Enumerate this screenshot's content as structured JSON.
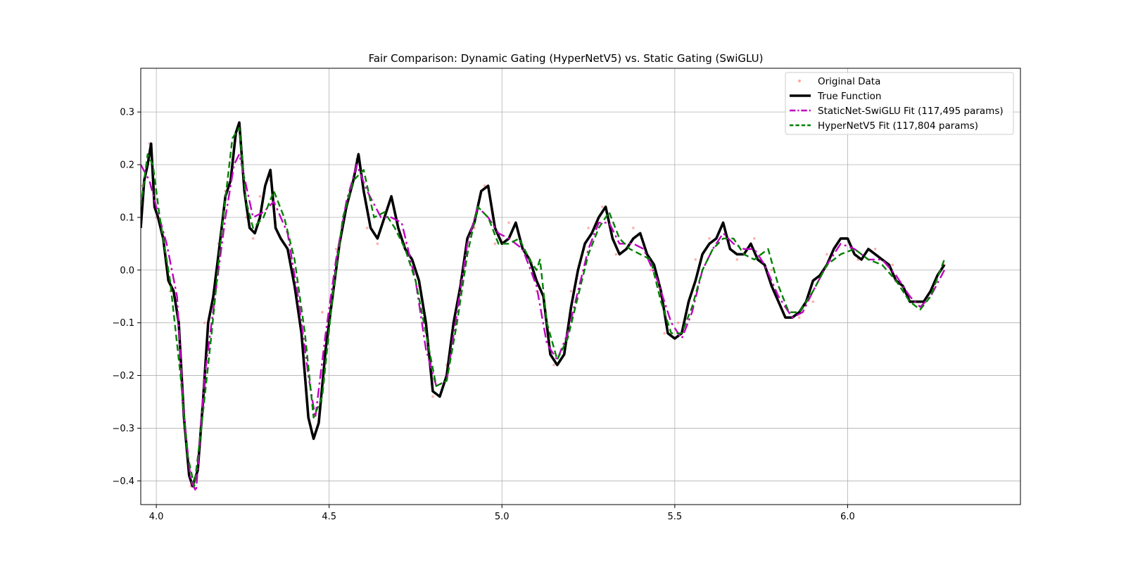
{
  "chart_data": {
    "type": "line",
    "title": "Fair Comparison: Dynamic Gating (HyperNetV5) vs. Static Gating (SwiGLU)",
    "xlabel": "",
    "ylabel": "",
    "xlim": [
      3.955,
      6.5
    ],
    "ylim": [
      -0.445,
      0.383
    ],
    "grid": true,
    "legend_position": "top-right",
    "x_ticks": [
      4.0,
      4.5,
      5.0,
      5.5,
      6.0
    ],
    "x_tick_labels": [
      "4.0",
      "4.5",
      "5.0",
      "5.5",
      "6.0"
    ],
    "y_ticks": [
      -0.4,
      -0.3,
      -0.2,
      -0.1,
      0.0,
      0.1,
      0.2,
      0.3
    ],
    "y_tick_labels": [
      "−0.4",
      "−0.3",
      "−0.2",
      "−0.1",
      "0.0",
      "0.1",
      "0.2",
      "0.3"
    ],
    "series": [
      {
        "name": "Original Data",
        "kind": "scatter",
        "color": "#ff6b6b",
        "x": [
          3.96,
          3.98,
          4.0,
          4.02,
          4.04,
          4.06,
          4.08,
          4.1,
          4.12,
          4.14,
          4.16,
          4.18,
          4.2,
          4.22,
          4.24,
          4.26,
          4.28,
          4.3,
          4.33,
          4.36,
          4.39,
          4.42,
          4.45,
          4.48,
          4.52,
          4.55,
          4.58,
          4.61,
          4.64,
          4.68,
          4.72,
          4.76,
          4.8,
          4.84,
          4.88,
          4.92,
          4.95,
          4.98,
          5.02,
          5.06,
          5.1,
          5.15,
          5.2,
          5.25,
          5.29,
          5.33,
          5.38,
          5.43,
          5.47,
          5.51,
          5.56,
          5.6,
          5.64,
          5.68,
          5.73,
          5.78,
          5.82,
          5.86,
          5.9,
          5.94,
          5.99,
          6.03,
          6.08,
          6.13,
          6.18,
          6.22,
          6.28
        ],
        "y": [
          0.16,
          0.24,
          0.1,
          0.07,
          -0.04,
          -0.08,
          -0.3,
          -0.41,
          -0.38,
          -0.1,
          -0.07,
          0.05,
          0.15,
          0.21,
          0.28,
          0.1,
          0.06,
          0.14,
          0.17,
          0.06,
          0.02,
          -0.12,
          -0.31,
          -0.08,
          0.04,
          0.12,
          0.21,
          0.08,
          0.05,
          0.14,
          0.05,
          -0.03,
          -0.24,
          -0.18,
          -0.02,
          0.08,
          0.16,
          0.05,
          0.09,
          0.04,
          -0.04,
          -0.18,
          -0.04,
          0.08,
          0.12,
          0.03,
          0.08,
          0.0,
          -0.12,
          -0.1,
          0.02,
          0.06,
          0.09,
          0.02,
          0.06,
          0.0,
          -0.07,
          -0.09,
          -0.06,
          0.03,
          0.06,
          0.02,
          0.04,
          0.01,
          -0.05,
          -0.06,
          0.01
        ]
      },
      {
        "name": "True Function",
        "kind": "line",
        "color": "#000000",
        "x": [
          3.955,
          3.965,
          3.975,
          3.985,
          3.995,
          4.005,
          4.02,
          4.035,
          4.05,
          4.065,
          4.08,
          4.095,
          4.105,
          4.12,
          4.135,
          4.15,
          4.165,
          4.18,
          4.2,
          4.215,
          4.23,
          4.24,
          4.255,
          4.27,
          4.285,
          4.3,
          4.315,
          4.33,
          4.345,
          4.36,
          4.38,
          4.4,
          4.42,
          4.44,
          4.455,
          4.47,
          4.49,
          4.51,
          4.53,
          4.55,
          4.57,
          4.585,
          4.6,
          4.62,
          4.64,
          4.66,
          4.68,
          4.7,
          4.72,
          4.74,
          4.76,
          4.78,
          4.8,
          4.82,
          4.84,
          4.86,
          4.88,
          4.9,
          4.92,
          4.94,
          4.96,
          4.98,
          5.0,
          5.02,
          5.04,
          5.06,
          5.08,
          5.1,
          5.12,
          5.14,
          5.16,
          5.18,
          5.2,
          5.22,
          5.24,
          5.26,
          5.28,
          5.3,
          5.32,
          5.34,
          5.36,
          5.38,
          5.4,
          5.42,
          5.44,
          5.46,
          5.48,
          5.5,
          5.52,
          5.54,
          5.56,
          5.58,
          5.6,
          5.62,
          5.64,
          5.66,
          5.68,
          5.7,
          5.72,
          5.74,
          5.76,
          5.78,
          5.8,
          5.82,
          5.84,
          5.86,
          5.88,
          5.9,
          5.92,
          5.94,
          5.96,
          5.98,
          6.0,
          6.02,
          6.04,
          6.06,
          6.08,
          6.1,
          6.12,
          6.14,
          6.16,
          6.18,
          6.2,
          6.22,
          6.24,
          6.26,
          6.28
        ],
        "y": [
          0.08,
          0.17,
          0.2,
          0.24,
          0.12,
          0.1,
          0.06,
          -0.02,
          -0.04,
          -0.1,
          -0.28,
          -0.39,
          -0.41,
          -0.38,
          -0.25,
          -0.1,
          -0.05,
          0.03,
          0.14,
          0.17,
          0.26,
          0.28,
          0.15,
          0.08,
          0.07,
          0.1,
          0.16,
          0.19,
          0.08,
          0.06,
          0.04,
          -0.03,
          -0.12,
          -0.28,
          -0.32,
          -0.29,
          -0.15,
          -0.05,
          0.05,
          0.12,
          0.17,
          0.22,
          0.15,
          0.08,
          0.06,
          0.1,
          0.14,
          0.08,
          0.04,
          0.02,
          -0.02,
          -0.1,
          -0.23,
          -0.24,
          -0.2,
          -0.1,
          -0.03,
          0.06,
          0.09,
          0.15,
          0.16,
          0.08,
          0.05,
          0.06,
          0.09,
          0.04,
          0.02,
          -0.02,
          -0.05,
          -0.16,
          -0.18,
          -0.16,
          -0.07,
          0.0,
          0.05,
          0.07,
          0.1,
          0.12,
          0.06,
          0.03,
          0.04,
          0.06,
          0.07,
          0.03,
          0.01,
          -0.04,
          -0.12,
          -0.13,
          -0.12,
          -0.06,
          -0.02,
          0.03,
          0.05,
          0.06,
          0.09,
          0.04,
          0.03,
          0.03,
          0.05,
          0.02,
          0.01,
          -0.03,
          -0.06,
          -0.09,
          -0.09,
          -0.08,
          -0.06,
          -0.02,
          -0.01,
          0.01,
          0.04,
          0.06,
          0.06,
          0.03,
          0.02,
          0.04,
          0.03,
          0.02,
          0.01,
          -0.02,
          -0.03,
          -0.06,
          -0.06,
          -0.06,
          -0.04,
          -0.01,
          0.01
        ]
      },
      {
        "name": "StaticNet-SwiGLU Fit (117,495 params)",
        "kind": "line",
        "color": "#c000c0",
        "x": [
          3.955,
          3.98,
          4.0,
          4.03,
          4.06,
          4.08,
          4.1,
          4.115,
          4.14,
          4.17,
          4.2,
          4.225,
          4.24,
          4.26,
          4.28,
          4.31,
          4.34,
          4.38,
          4.41,
          4.44,
          4.46,
          4.49,
          4.52,
          4.55,
          4.58,
          4.61,
          4.65,
          4.68,
          4.71,
          4.75,
          4.78,
          4.81,
          4.84,
          4.87,
          4.9,
          4.93,
          4.96,
          4.99,
          5.02,
          5.06,
          5.1,
          5.13,
          5.16,
          5.19,
          5.22,
          5.25,
          5.28,
          5.31,
          5.34,
          5.38,
          5.41,
          5.45,
          5.49,
          5.52,
          5.55,
          5.58,
          5.61,
          5.64,
          5.67,
          5.7,
          5.73,
          5.76,
          5.8,
          5.84,
          5.87,
          5.9,
          5.94,
          5.98,
          6.02,
          6.06,
          6.1,
          6.14,
          6.18,
          6.21,
          6.24,
          6.28
        ],
        "y": [
          0.2,
          0.17,
          0.12,
          0.05,
          -0.05,
          -0.28,
          -0.4,
          -0.42,
          -0.2,
          -0.05,
          0.1,
          0.2,
          0.22,
          0.16,
          0.1,
          0.11,
          0.13,
          0.07,
          -0.05,
          -0.2,
          -0.28,
          -0.12,
          0.02,
          0.13,
          0.2,
          0.15,
          0.1,
          0.1,
          0.09,
          -0.02,
          -0.15,
          -0.22,
          -0.21,
          -0.08,
          0.05,
          0.12,
          0.1,
          0.07,
          0.06,
          0.04,
          -0.03,
          -0.14,
          -0.17,
          -0.12,
          -0.04,
          0.04,
          0.09,
          0.09,
          0.05,
          0.05,
          0.04,
          -0.02,
          -0.1,
          -0.13,
          -0.08,
          0.0,
          0.04,
          0.07,
          0.05,
          0.04,
          0.04,
          0.01,
          -0.05,
          -0.09,
          -0.08,
          -0.04,
          0.01,
          0.05,
          0.04,
          0.02,
          0.02,
          -0.01,
          -0.05,
          -0.07,
          -0.05,
          0.0
        ]
      },
      {
        "name": "HyperNetV5 Fit (117,804 params)",
        "kind": "line",
        "color": "#008000",
        "x": [
          3.955,
          3.975,
          3.99,
          4.01,
          4.04,
          4.07,
          4.09,
          4.11,
          4.13,
          4.16,
          4.19,
          4.22,
          4.24,
          4.26,
          4.28,
          4.31,
          4.34,
          4.37,
          4.4,
          4.43,
          4.455,
          4.48,
          4.51,
          4.54,
          4.57,
          4.6,
          4.63,
          4.66,
          4.69,
          4.72,
          4.75,
          4.78,
          4.81,
          4.84,
          4.87,
          4.9,
          4.93,
          4.96,
          4.99,
          5.02,
          5.05,
          5.08,
          5.1,
          5.11,
          5.13,
          5.16,
          5.19,
          5.22,
          5.25,
          5.28,
          5.31,
          5.34,
          5.37,
          5.4,
          5.43,
          5.46,
          5.49,
          5.52,
          5.55,
          5.58,
          5.61,
          5.64,
          5.67,
          5.7,
          5.73,
          5.77,
          5.8,
          5.83,
          5.86,
          5.9,
          5.94,
          5.98,
          6.02,
          6.06,
          6.1,
          6.14,
          6.18,
          6.21,
          6.24,
          6.28
        ],
        "y": [
          0.12,
          0.22,
          0.2,
          0.1,
          -0.02,
          -0.2,
          -0.35,
          -0.41,
          -0.3,
          -0.12,
          0.08,
          0.25,
          0.27,
          0.13,
          0.08,
          0.1,
          0.15,
          0.1,
          0.02,
          -0.12,
          -0.28,
          -0.24,
          -0.05,
          0.1,
          0.17,
          0.19,
          0.1,
          0.11,
          0.08,
          0.04,
          -0.02,
          -0.12,
          -0.22,
          -0.21,
          -0.1,
          0.03,
          0.12,
          0.1,
          0.05,
          0.05,
          0.06,
          0.02,
          0.0,
          0.02,
          -0.1,
          -0.17,
          -0.13,
          -0.05,
          0.03,
          0.08,
          0.11,
          0.06,
          0.04,
          0.03,
          0.02,
          -0.06,
          -0.12,
          -0.12,
          -0.07,
          0.0,
          0.04,
          0.06,
          0.06,
          0.03,
          0.02,
          0.04,
          -0.03,
          -0.08,
          -0.08,
          -0.04,
          0.01,
          0.03,
          0.04,
          0.02,
          0.01,
          -0.02,
          -0.06,
          -0.075,
          -0.05,
          0.02
        ]
      }
    ]
  }
}
